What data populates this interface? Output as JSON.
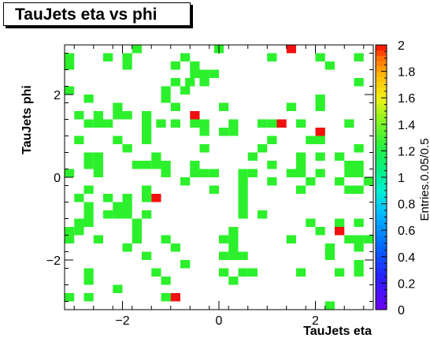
{
  "chart_data": {
    "type": "heatmap",
    "title": "TauJets eta vs phi",
    "xlabel": "TauJets eta",
    "ylabel": "TauJets phi",
    "zlabel": "Entries.0.05/0.5",
    "xlim": [
      -3.2,
      3.2
    ],
    "ylim": [
      -3.2,
      3.2
    ],
    "zlim": [
      0,
      2
    ],
    "x_ticks": [
      -2,
      0,
      2
    ],
    "x_tick_labels": [
      "−2",
      "0",
      "2"
    ],
    "y_ticks": [
      -2,
      0,
      2
    ],
    "y_tick_labels": [
      "−2",
      "0",
      "2"
    ],
    "z_ticks": [
      0,
      0.2,
      0.4,
      0.6,
      0.8,
      1,
      1.2,
      1.4,
      1.6,
      1.8,
      2
    ],
    "z_tick_labels": [
      "0",
      "0.2",
      "0.4",
      "0.6",
      "0.8",
      "1",
      "1.2",
      "1.4",
      "1.6",
      "1.8",
      "2"
    ],
    "bin_size": [
      0.2,
      0.2
    ],
    "cells_value_1": [
      [
        -1.7,
        3.1
      ],
      [
        0,
        3.1
      ],
      [
        -3.1,
        2.9
      ],
      [
        -1.9,
        2.9
      ],
      [
        -2.3,
        2.9
      ],
      [
        -0.7,
        2.9
      ],
      [
        1.1,
        2.9
      ],
      [
        2.1,
        2.9
      ],
      [
        2.9,
        2.9
      ],
      [
        -3.1,
        2.7
      ],
      [
        -1.9,
        2.7
      ],
      [
        -0.9,
        2.7
      ],
      [
        -0.5,
        2.7
      ],
      [
        2.3,
        2.7
      ],
      [
        -0.3,
        2.5
      ],
      [
        -0.1,
        2.5
      ],
      [
        -0.5,
        2.5
      ],
      [
        -0.3,
        2.3
      ],
      [
        -0.9,
        2.3
      ],
      [
        -0.6,
        2.3
      ],
      [
        2.9,
        2.3
      ],
      [
        -3.1,
        2.1
      ],
      [
        -1.1,
        2.1
      ],
      [
        -0.7,
        2.1
      ],
      [
        -2.7,
        1.9
      ],
      [
        -1.1,
        1.9
      ],
      [
        2.1,
        1.9
      ],
      [
        -2.1,
        1.7
      ],
      [
        -0.9,
        1.7
      ],
      [
        -1.9,
        1.5
      ],
      [
        -2.9,
        1.5
      ],
      [
        -1.5,
        1.5
      ],
      [
        0.1,
        1.7
      ],
      [
        2.1,
        1.7
      ],
      [
        1.5,
        1.7
      ],
      [
        -2.5,
        1.5
      ],
      [
        -2.1,
        1.5
      ],
      [
        -2.7,
        1.3
      ],
      [
        -2.5,
        1.3
      ],
      [
        -2.3,
        1.3
      ],
      [
        -1.5,
        1.3
      ],
      [
        -1.2,
        1.3
      ],
      [
        -0.9,
        1.3
      ],
      [
        -0.5,
        1.3
      ],
      [
        -0.3,
        1.3
      ],
      [
        0.3,
        1.3
      ],
      [
        0.9,
        1.3
      ],
      [
        1.1,
        1.3
      ],
      [
        1.7,
        1.3
      ],
      [
        2.7,
        1.3
      ],
      [
        -1.5,
        1.1
      ],
      [
        -0.3,
        1.1
      ],
      [
        0.1,
        1.1
      ],
      [
        0.3,
        1.1
      ],
      [
        2.1,
        1.1
      ],
      [
        -2.9,
        0.9
      ],
      [
        -2.1,
        0.9
      ],
      [
        -1.5,
        0.9
      ],
      [
        1.1,
        0.9
      ],
      [
        1.9,
        0.9
      ],
      [
        2.1,
        0.9
      ],
      [
        -1.9,
        0.7
      ],
      [
        -0.3,
        0.7
      ],
      [
        0.9,
        0.7
      ],
      [
        2.9,
        0.7
      ],
      [
        -2.7,
        0.5
      ],
      [
        -2.5,
        0.5
      ],
      [
        -1.3,
        0.5
      ],
      [
        0.7,
        0.5
      ],
      [
        1.7,
        0.5
      ],
      [
        2.1,
        0.5
      ],
      [
        2.5,
        0.5
      ],
      [
        -2.7,
        0.3
      ],
      [
        -2.5,
        0.3
      ],
      [
        -1.7,
        0.3
      ],
      [
        -1.5,
        0.3
      ],
      [
        -1.3,
        0.3
      ],
      [
        -1.1,
        0.3
      ],
      [
        -0.5,
        0.3
      ],
      [
        1.1,
        0.3
      ],
      [
        1.7,
        0.3
      ],
      [
        2.7,
        0.3
      ],
      [
        2.9,
        0.3
      ],
      [
        -3.1,
        0.1
      ],
      [
        -2.5,
        0.1
      ],
      [
        -1.1,
        0.1
      ],
      [
        -0.5,
        0.1
      ],
      [
        -0.3,
        0.1
      ],
      [
        -0.1,
        0.1
      ],
      [
        0.5,
        0.1
      ],
      [
        0.7,
        0.1
      ],
      [
        1.5,
        0.1
      ],
      [
        1.7,
        0.1
      ],
      [
        2.1,
        0.1
      ],
      [
        2.7,
        0.1
      ],
      [
        2.9,
        0.1
      ],
      [
        -0.7,
        -0.1
      ],
      [
        0.5,
        -0.1
      ],
      [
        1.1,
        -0.1
      ],
      [
        1.9,
        -0.1
      ],
      [
        2.5,
        -0.1
      ],
      [
        3.1,
        -0.1
      ],
      [
        -2.7,
        -0.3
      ],
      [
        -1.5,
        -0.3
      ],
      [
        -0.1,
        -0.3
      ],
      [
        0.5,
        -0.3
      ],
      [
        1.7,
        -0.3
      ],
      [
        2.7,
        -0.3
      ],
      [
        2.9,
        -0.3
      ],
      [
        -2.9,
        -0.5
      ],
      [
        -2.3,
        -0.5
      ],
      [
        -1.9,
        -0.5
      ],
      [
        -1.5,
        -0.5
      ],
      [
        0.5,
        -0.5
      ],
      [
        -2.7,
        -0.7
      ],
      [
        -2.1,
        -0.7
      ],
      [
        -1.9,
        -0.7
      ],
      [
        0.5,
        -0.7
      ],
      [
        -2.7,
        -0.9
      ],
      [
        -2.3,
        -0.9
      ],
      [
        -2.1,
        -0.9
      ],
      [
        -1.9,
        -0.9
      ],
      [
        -1.5,
        -0.9
      ],
      [
        0.5,
        -0.9
      ],
      [
        0.9,
        -0.9
      ],
      [
        -2.9,
        -1.1
      ],
      [
        -2.7,
        -1.1
      ],
      [
        -1.7,
        -1.1
      ],
      [
        1.9,
        -1.1
      ],
      [
        2.5,
        -1.1
      ],
      [
        2.9,
        -1.1
      ],
      [
        -3.1,
        -1.3
      ],
      [
        -2.9,
        -1.3
      ],
      [
        -1.7,
        -1.3
      ],
      [
        0.3,
        -1.3
      ],
      [
        2.1,
        -1.3
      ],
      [
        -3.1,
        -1.5
      ],
      [
        -2.5,
        -1.5
      ],
      [
        -1.7,
        -1.5
      ],
      [
        -1.1,
        -1.5
      ],
      [
        0.1,
        -1.5
      ],
      [
        0.3,
        -1.5
      ],
      [
        1.5,
        -1.5
      ],
      [
        2.7,
        -1.5
      ],
      [
        2.9,
        -1.5
      ],
      [
        3.1,
        -1.5
      ],
      [
        -1.9,
        -1.7
      ],
      [
        -0.9,
        -1.7
      ],
      [
        0.3,
        -1.7
      ],
      [
        2.3,
        -1.7
      ],
      [
        2.9,
        -1.7
      ],
      [
        -1.5,
        -1.9
      ],
      [
        0.1,
        -1.9
      ],
      [
        0.3,
        -1.9
      ],
      [
        0.5,
        -1.9
      ],
      [
        2.3,
        -1.9
      ],
      [
        -0.7,
        -2.1
      ],
      [
        2.9,
        -2.1
      ],
      [
        -2.7,
        -2.3
      ],
      [
        -1.3,
        -2.3
      ],
      [
        0.1,
        -2.3
      ],
      [
        0.5,
        -2.3
      ],
      [
        0.7,
        -2.3
      ],
      [
        1.7,
        -2.3
      ],
      [
        2.5,
        -2.3
      ],
      [
        2.9,
        -2.3
      ],
      [
        -2.7,
        -2.5
      ],
      [
        -1.1,
        -2.5
      ],
      [
        0.3,
        -2.5
      ],
      [
        -2.1,
        -2.7
      ],
      [
        -3.1,
        -2.9
      ],
      [
        -2.7,
        -2.9
      ],
      [
        -1.1,
        -2.9
      ],
      [
        2.3,
        -3.1
      ]
    ],
    "cells_value_2": [
      [
        1.5,
        3.1
      ],
      [
        -0.5,
        1.5
      ],
      [
        1.3,
        1.3
      ],
      [
        2.1,
        1.1
      ],
      [
        -1.3,
        -0.5
      ],
      [
        2.5,
        -1.3
      ],
      [
        -0.9,
        -2.9
      ]
    ]
  }
}
